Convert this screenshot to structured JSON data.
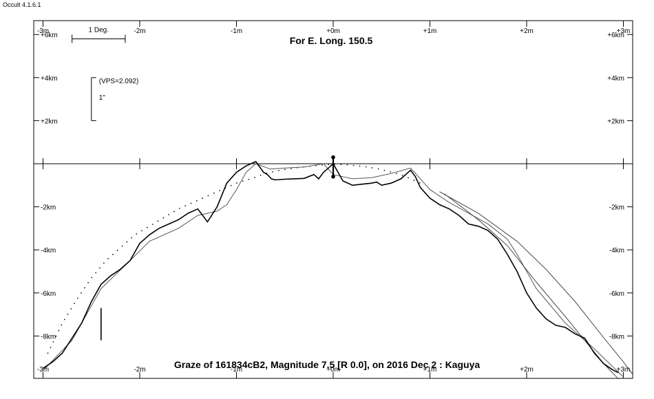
{
  "app": {
    "title": "Occult 4.1.6.1"
  },
  "chart_data": {
    "type": "line",
    "title": "For E. Long. 150.5",
    "footer": "Graze of  161834cB2,  Magnitude 7.5 [R 0.0],  on 2016 Dec  2  :  Kaguya",
    "xlim": [
      -3,
      3
    ],
    "ylim": [
      -9.6,
      6.6
    ],
    "x_tick_labels": [
      "-3m",
      "-2m",
      "-1m",
      "+0m",
      "+1m",
      "+2m",
      "+3m"
    ],
    "x_tick_values": [
      -3,
      -2,
      -1,
      0,
      1,
      2,
      3
    ],
    "y_tick_labels": [
      "+6km",
      "+4km",
      "+2km",
      "-2km",
      "-4km",
      "-6km",
      "-8km"
    ],
    "y_tick_values": [
      6,
      4,
      2,
      -2,
      -4,
      -6,
      -8
    ],
    "scale_bar": {
      "label": "1 Deg.",
      "x": [
        -2.7,
        -2.15
      ],
      "y": 5.8
    },
    "vps": {
      "label": "(VPS=2.092)",
      "arcsec_label": "1\"",
      "x": -2.5,
      "y": [
        2,
        4
      ]
    },
    "limb_profile": {
      "x": [
        -3,
        -2.9,
        -2.8,
        -2.7,
        -2.6,
        -2.5,
        -2.4,
        -2.3,
        -2.2,
        -2.1,
        -2.0,
        -1.9,
        -1.8,
        -1.7,
        -1.6,
        -1.5,
        -1.4,
        -1.3,
        -1.2,
        -1.1,
        -1.0,
        -0.9,
        -0.8,
        -0.72,
        -0.68,
        -0.64,
        -0.6,
        -0.5,
        -0.4,
        -0.3,
        -0.2,
        -0.15,
        -0.1,
        -0.05,
        0,
        0.1,
        0.2,
        0.3,
        0.4,
        0.45,
        0.5,
        0.6,
        0.7,
        0.75,
        0.8,
        0.85,
        0.9,
        1.0,
        1.1,
        1.2,
        1.3,
        1.4,
        1.5,
        1.6,
        1.7,
        1.8,
        1.9,
        2.0,
        2.1,
        2.2,
        2.3,
        2.4,
        2.5,
        2.6,
        2.7,
        2.8,
        2.9,
        2.95
      ],
      "y": [
        -9.5,
        -9.2,
        -8.8,
        -8.1,
        -7.4,
        -6.4,
        -5.6,
        -5.2,
        -4.9,
        -4.5,
        -3.7,
        -3.3,
        -3.0,
        -2.8,
        -2.6,
        -2.3,
        -2.1,
        -2.7,
        -2.0,
        -0.9,
        -0.4,
        -0.1,
        0.1,
        -0.4,
        -0.5,
        -0.7,
        -0.75,
        -0.72,
        -0.7,
        -0.68,
        -0.5,
        -0.7,
        -0.4,
        -0.2,
        0,
        -0.8,
        -1.0,
        -0.95,
        -0.9,
        -0.85,
        -1.0,
        -0.9,
        -0.7,
        -0.5,
        -0.3,
        -0.6,
        -1.1,
        -1.6,
        -1.9,
        -2.1,
        -2.4,
        -2.8,
        -2.9,
        -3.1,
        -3.5,
        -4.2,
        -5.0,
        -6.0,
        -6.7,
        -7.2,
        -7.5,
        -7.6,
        -7.9,
        -8.1,
        -8.8,
        -9.3,
        -9.6,
        -9.7
      ]
    },
    "smooth_limb": {
      "x": [
        -3,
        -2.7,
        -2.4,
        -2.1,
        -1.9,
        -1.6,
        -1.4,
        -1.2,
        -1.1,
        -1.0,
        -0.9,
        -0.8,
        -0.65,
        -0.5,
        -0.3,
        -0.1,
        0,
        0.2,
        0.4,
        0.6,
        0.8,
        0.9,
        1.0,
        1.2,
        1.4,
        1.6,
        1.8,
        1.9,
        2.1,
        2.4,
        2.7,
        3.0
      ],
      "y": [
        -9.6,
        -8.2,
        -5.8,
        -4.5,
        -3.6,
        -3.0,
        -2.4,
        -2.2,
        -1.9,
        -1.2,
        -0.4,
        0.0,
        -0.25,
        -0.2,
        -0.15,
        0.0,
        -0.5,
        -0.7,
        -0.65,
        -0.45,
        -0.2,
        -0.7,
        -1.2,
        -1.8,
        -2.3,
        -2.8,
        -3.5,
        -4.2,
        -5.8,
        -7.4,
        -8.6,
        -9.9
      ]
    },
    "dotted_limb": {
      "x": [
        -2.95,
        -2.8,
        -2.65,
        -2.5,
        -2.35,
        -2.2,
        -2.05,
        -1.9,
        -1.75,
        -1.6,
        -1.45,
        -1.3,
        -1.15,
        -1.0,
        -0.85,
        -0.7,
        -0.55,
        -0.4,
        -0.25,
        -0.1,
        0,
        0.15,
        0.3,
        0.45,
        0.6,
        0.75,
        0.9
      ],
      "y": [
        -8.8,
        -7.4,
        -6.3,
        -5.3,
        -4.5,
        -3.9,
        -3.3,
        -2.9,
        -2.5,
        -2.1,
        -1.8,
        -1.5,
        -1.2,
        -0.9,
        -0.7,
        -0.45,
        -0.3,
        -0.2,
        -0.12,
        -0.05,
        -0.02,
        -0.05,
        -0.12,
        -0.22,
        -0.38,
        -0.6,
        -0.9
      ]
    },
    "curve_a": {
      "x": [
        1.1,
        1.5,
        1.9,
        2.2,
        2.5,
        2.8,
        3.0,
        3.1
      ],
      "y": [
        -1.3,
        -2.3,
        -3.6,
        -4.9,
        -6.4,
        -8.1,
        -9.2,
        -9.8
      ]
    },
    "curve_b": {
      "x": [
        1.15,
        1.5,
        1.8,
        2.1,
        2.4,
        2.6,
        2.8,
        2.95
      ],
      "y": [
        -1.4,
        -2.6,
        -3.8,
        -5.5,
        -7.1,
        -8.2,
        -9.3,
        -10.0
      ]
    },
    "central_marker": {
      "x": 0,
      "y": [
        0.3,
        -0.6
      ]
    },
    "vertical_marker": {
      "x": -2.4,
      "y": [
        -6.7,
        -8.2
      ]
    }
  }
}
